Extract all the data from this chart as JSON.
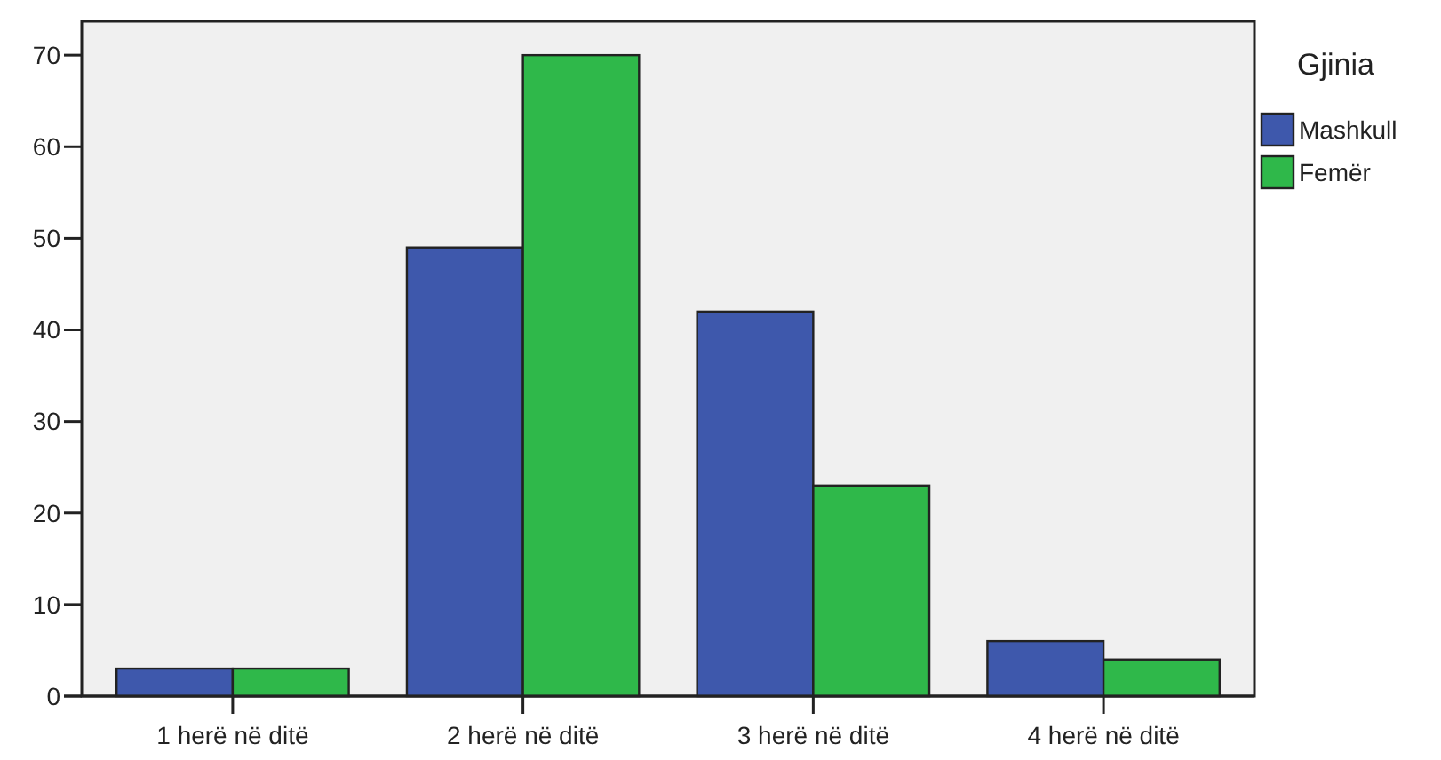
{
  "chart_data": {
    "type": "bar",
    "categories": [
      "1 herë në ditë",
      "2 herë në ditë",
      "3 herë në ditë",
      "4 herë në ditë"
    ],
    "legend_title": "Gjinia",
    "legend": "right",
    "series": [
      {
        "name": "Mashkull",
        "color": "#3e58ac",
        "values": [
          3,
          49,
          42,
          6
        ]
      },
      {
        "name": "Femër",
        "color": "#2fb84a",
        "values": [
          3,
          70,
          23,
          4
        ]
      }
    ],
    "ylim": [
      0,
      73.7
    ],
    "yticks": [
      0,
      10,
      20,
      30,
      40,
      50,
      60,
      70
    ],
    "grid": false
  }
}
